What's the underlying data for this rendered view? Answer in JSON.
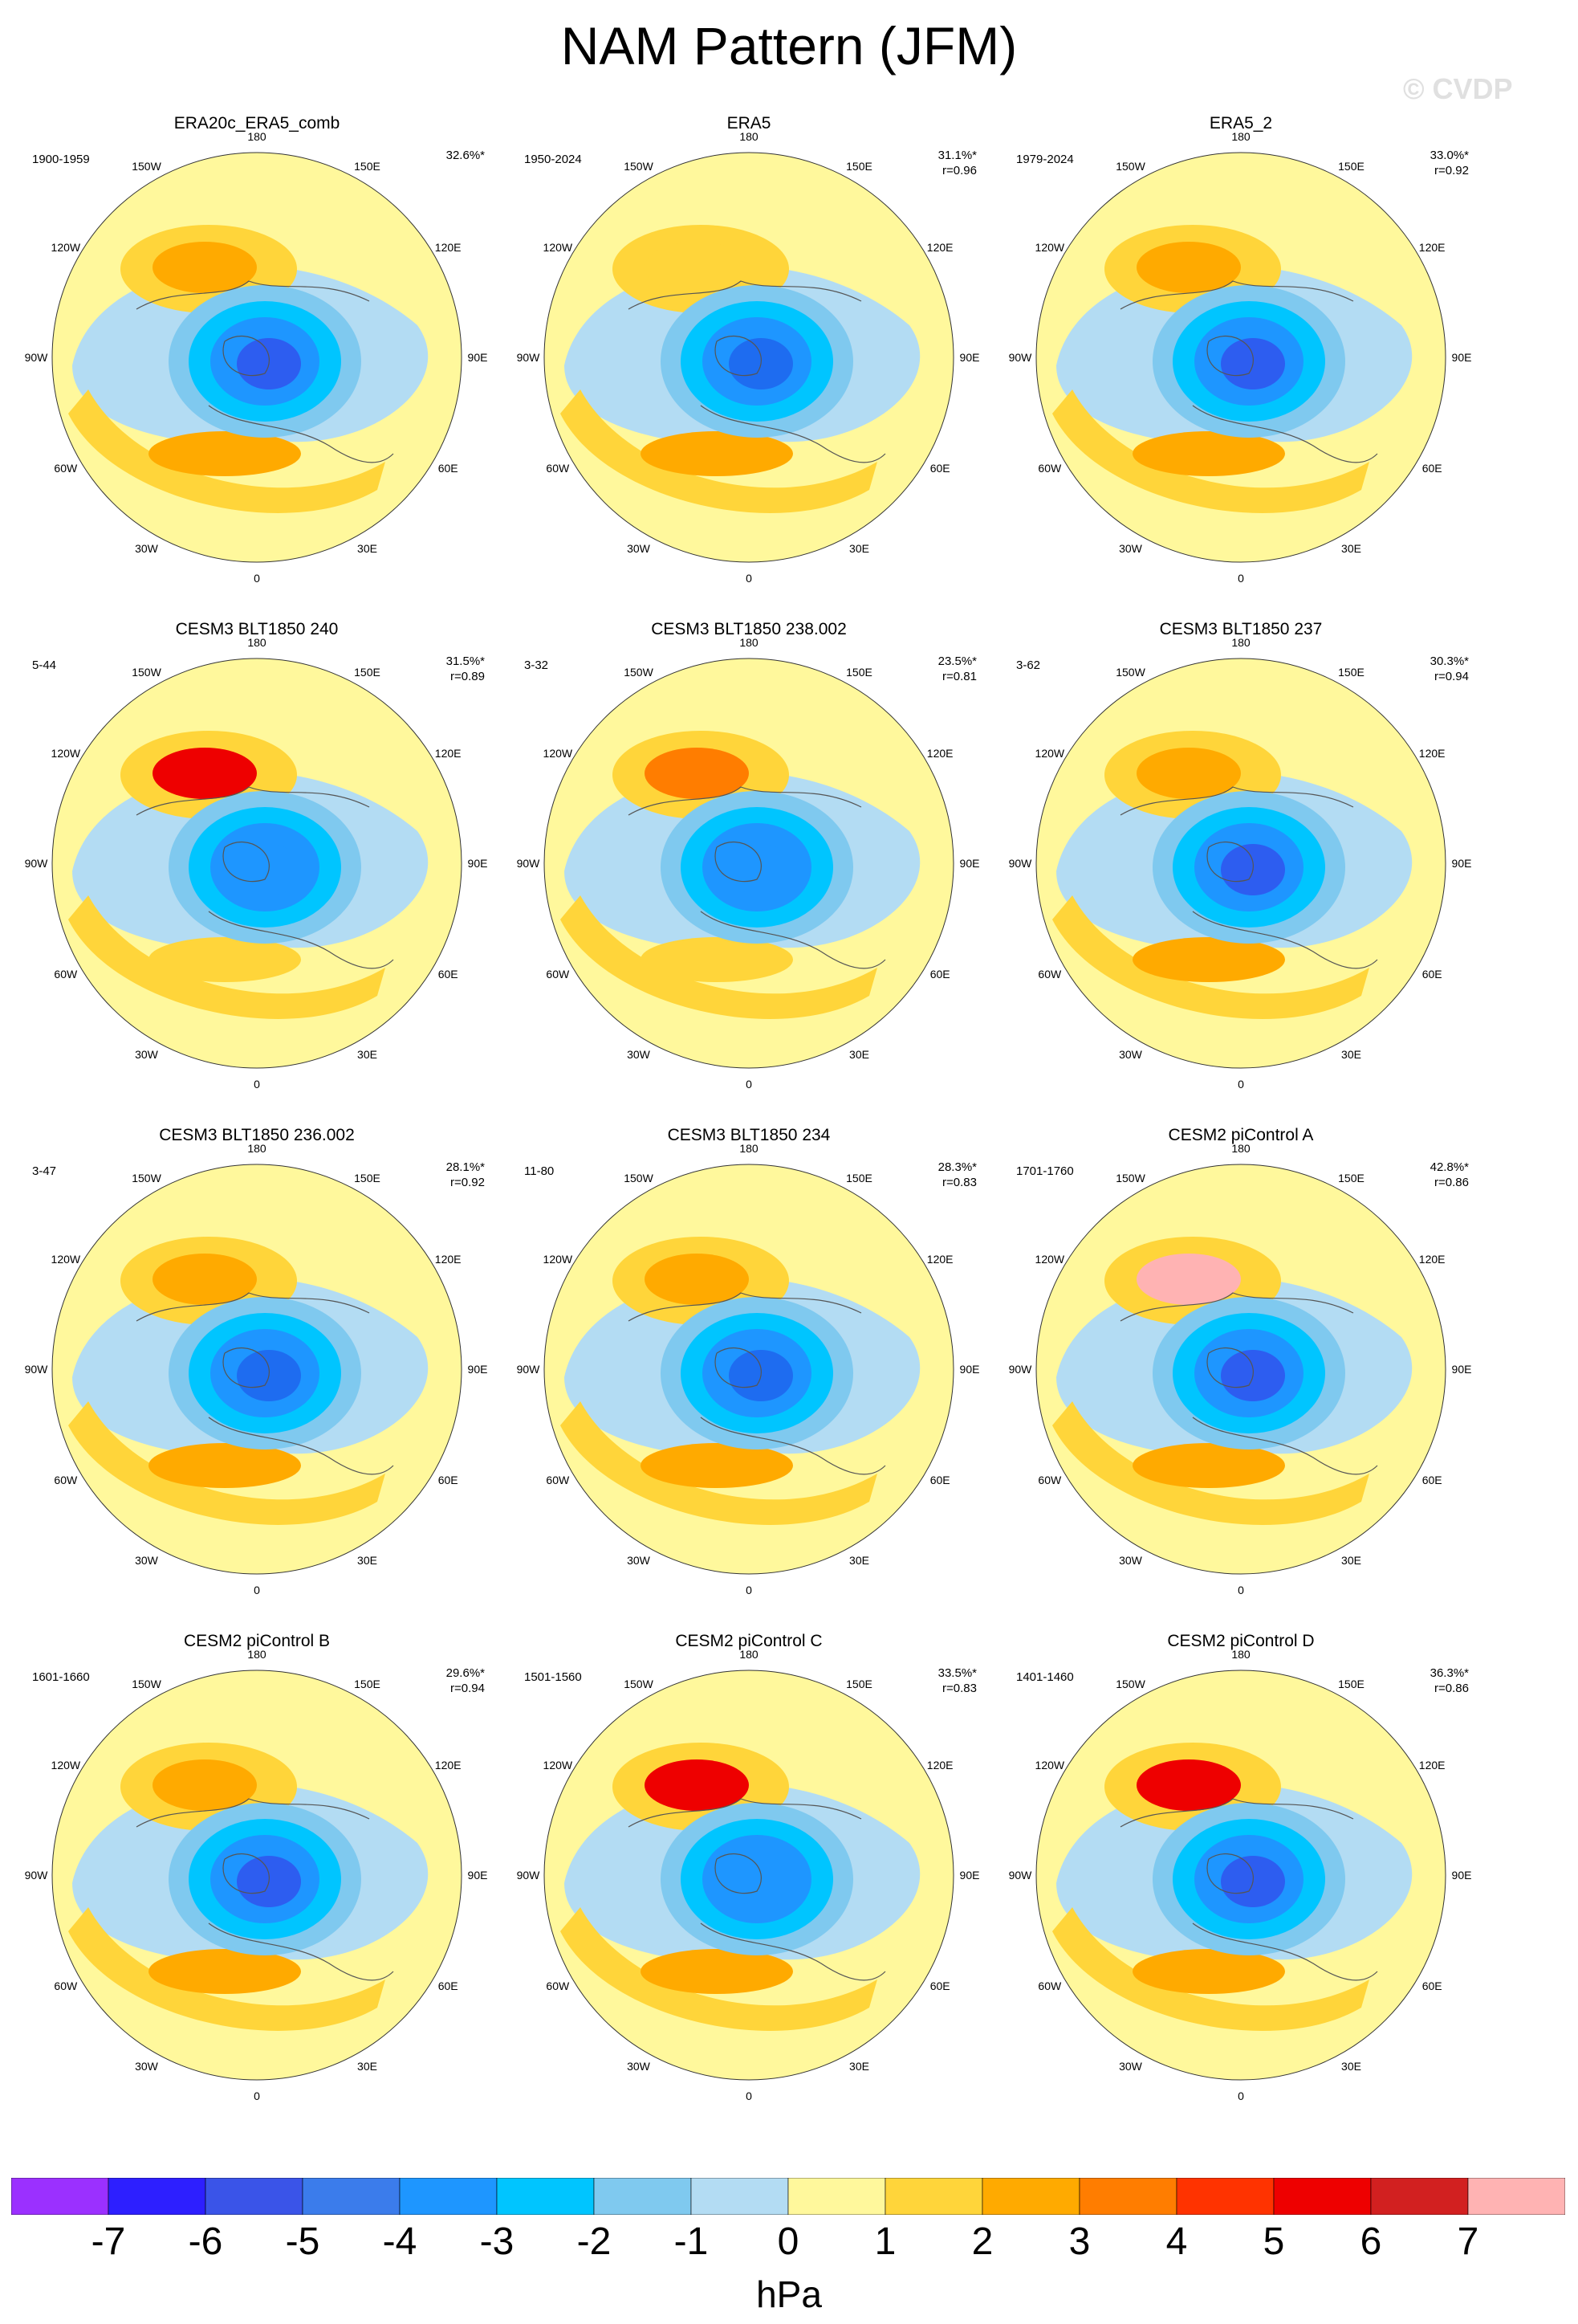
{
  "title": "NAM Pattern (JFM)",
  "watermark": "© CVDP",
  "units": "hPa",
  "colorbar": {
    "ticks": [
      "-7",
      "-6",
      "-5",
      "-4",
      "-3",
      "-2",
      "-1",
      "0",
      "1",
      "2",
      "3",
      "4",
      "5",
      "6",
      "7"
    ],
    "colors": [
      "#9b30ff",
      "#2d1fff",
      "#3a54e8",
      "#3b7ceb",
      "#1e96ff",
      "#00c5ff",
      "#7fc9ef",
      "#b3dcf3",
      "#fff89c",
      "#ffd53a",
      "#ffaa00",
      "#ff7d00",
      "#ff3300",
      "#ee0000",
      "#d22020",
      "#ffb3b3"
    ]
  },
  "lon_labels": [
    "180",
    "150E",
    "120E",
    "90E",
    "60E",
    "30E",
    "0",
    "30W",
    "60W",
    "90W",
    "120W",
    "150W"
  ],
  "panels": [
    {
      "name": "ERA20c_ERA5_comb",
      "range": "1900-1959",
      "pct": "32.6%*",
      "r": "",
      "style": {
        "a": "#ffaa00",
        "b": "#2d5df0",
        "c": "#ffaa00"
      }
    },
    {
      "name": "ERA5",
      "range": "1950-2024",
      "pct": "31.1%*",
      "r": "r=0.96",
      "style": {
        "a": "#ffd53a",
        "b": "#1e6cf0",
        "c": "#ffaa00"
      }
    },
    {
      "name": "ERA5_2",
      "range": "1979-2024",
      "pct": "33.0%*",
      "r": "r=0.92",
      "style": {
        "a": "#ffaa00",
        "b": "#2d5df0",
        "c": "#ffaa00"
      }
    },
    {
      "name": "CESM3 BLT1850 240",
      "range": "5-44",
      "pct": "31.5%*",
      "r": "r=0.89",
      "style": {
        "a": "#ee0000",
        "b": "#1e96ff",
        "c": "#ffd53a"
      }
    },
    {
      "name": "CESM3 BLT1850 238.002",
      "range": "3-32",
      "pct": "23.5%*",
      "r": "r=0.81",
      "style": {
        "a": "#ff7d00",
        "b": "#1e96ff",
        "c": "#ffd53a"
      }
    },
    {
      "name": "CESM3 BLT1850 237",
      "range": "3-62",
      "pct": "30.3%*",
      "r": "r=0.94",
      "style": {
        "a": "#ffaa00",
        "b": "#2d5df0",
        "c": "#ffaa00"
      }
    },
    {
      "name": "CESM3 BLT1850 236.002",
      "range": "3-47",
      "pct": "28.1%*",
      "r": "r=0.92",
      "style": {
        "a": "#ffaa00",
        "b": "#1e6cf0",
        "c": "#ffaa00"
      }
    },
    {
      "name": "CESM3 BLT1850 234",
      "range": "11-80",
      "pct": "28.3%*",
      "r": "r=0.83",
      "style": {
        "a": "#ffaa00",
        "b": "#1e6cf0",
        "c": "#ffaa00"
      }
    },
    {
      "name": "CESM2 piControl A",
      "range": "1701-1760",
      "pct": "42.8%*",
      "r": "r=0.86",
      "style": {
        "a": "#ffb3b3",
        "b": "#2d5df0",
        "c": "#ffaa00"
      }
    },
    {
      "name": "CESM2 piControl B",
      "range": "1601-1660",
      "pct": "29.6%*",
      "r": "r=0.94",
      "style": {
        "a": "#ffaa00",
        "b": "#2d5df0",
        "c": "#ffaa00"
      }
    },
    {
      "name": "CESM2 piControl C",
      "range": "1501-1560",
      "pct": "33.5%*",
      "r": "r=0.83",
      "style": {
        "a": "#ee0000",
        "b": "#1e96ff",
        "c": "#ffaa00"
      }
    },
    {
      "name": "CESM2 piControl D",
      "range": "1401-1460",
      "pct": "36.3%*",
      "r": "r=0.86",
      "style": {
        "a": "#ee0000",
        "b": "#2d5df0",
        "c": "#ffaa00"
      }
    }
  ]
}
